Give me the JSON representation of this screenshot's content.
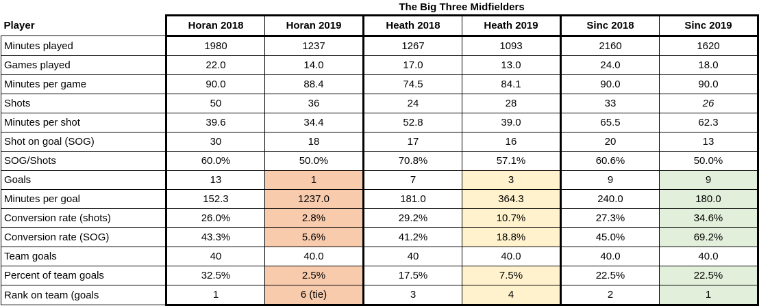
{
  "chart_data": {
    "type": "table",
    "title": "The Big Three Midfielders",
    "row_header": "Player",
    "columns": [
      "Horan 2018",
      "Horan 2019",
      "Heath 2018",
      "Heath 2019",
      "Sinc 2018",
      "Sinc 2019"
    ],
    "rows": [
      {
        "label": "Minutes played",
        "values": [
          "1980",
          "1237",
          "1267",
          "1093",
          "2160",
          "1620"
        ],
        "highlighted": false,
        "italic_cols": []
      },
      {
        "label": "Games played",
        "values": [
          "22.0",
          "14.0",
          "17.0",
          "13.0",
          "24.0",
          "18.0"
        ],
        "highlighted": false,
        "italic_cols": []
      },
      {
        "label": "Minutes per game",
        "values": [
          "90.0",
          "88.4",
          "74.5",
          "84.1",
          "90.0",
          "90.0"
        ],
        "highlighted": false,
        "italic_cols": []
      },
      {
        "label": "Shots",
        "values": [
          "50",
          "36",
          "24",
          "28",
          "33",
          "26"
        ],
        "highlighted": false,
        "italic_cols": [
          5
        ]
      },
      {
        "label": "Minutes per shot",
        "values": [
          "39.6",
          "34.4",
          "52.8",
          "39.0",
          "65.5",
          "62.3"
        ],
        "highlighted": false,
        "italic_cols": []
      },
      {
        "label": "Shot on goal (SOG)",
        "values": [
          "30",
          "18",
          "17",
          "16",
          "20",
          "13"
        ],
        "highlighted": false,
        "italic_cols": []
      },
      {
        "label": "SOG/Shots",
        "values": [
          "60.0%",
          "50.0%",
          "70.8%",
          "57.1%",
          "60.6%",
          "50.0%"
        ],
        "highlighted": false,
        "italic_cols": []
      },
      {
        "label": "Goals",
        "values": [
          "13",
          "1",
          "7",
          "3",
          "9",
          "9"
        ],
        "highlighted": true,
        "italic_cols": []
      },
      {
        "label": "Minutes per goal",
        "values": [
          "152.3",
          "1237.0",
          "181.0",
          "364.3",
          "240.0",
          "180.0"
        ],
        "highlighted": true,
        "italic_cols": []
      },
      {
        "label": "Conversion rate (shots)",
        "values": [
          "26.0%",
          "2.8%",
          "29.2%",
          "10.7%",
          "27.3%",
          "34.6%"
        ],
        "highlighted": true,
        "italic_cols": []
      },
      {
        "label": "Conversion rate (SOG)",
        "values": [
          "43.3%",
          "5.6%",
          "41.2%",
          "18.8%",
          "45.0%",
          "69.2%"
        ],
        "highlighted": true,
        "italic_cols": []
      },
      {
        "label": "Team goals",
        "values": [
          "40",
          "40.0",
          "40",
          "40.0",
          "40.0",
          "40.0"
        ],
        "highlighted": false,
        "italic_cols": []
      },
      {
        "label": "Percent of team goals",
        "values": [
          "32.5%",
          "2.5%",
          "17.5%",
          "7.5%",
          "22.5%",
          "22.5%"
        ],
        "highlighted": true,
        "italic_cols": []
      },
      {
        "label": "Rank on team (goals",
        "values": [
          "1",
          "6 (tie)",
          "3",
          "4",
          "2",
          "1"
        ],
        "highlighted": true,
        "italic_cols": []
      }
    ],
    "highlight_colors_by_column": {
      "1": "#F8CBAD",
      "3": "#FFF2CC",
      "5": "#E2EFDA"
    },
    "layout_hints": {
      "first_column_align": "left",
      "data_columns_align": "center",
      "thick_borders_between_player_groups": true
    }
  }
}
